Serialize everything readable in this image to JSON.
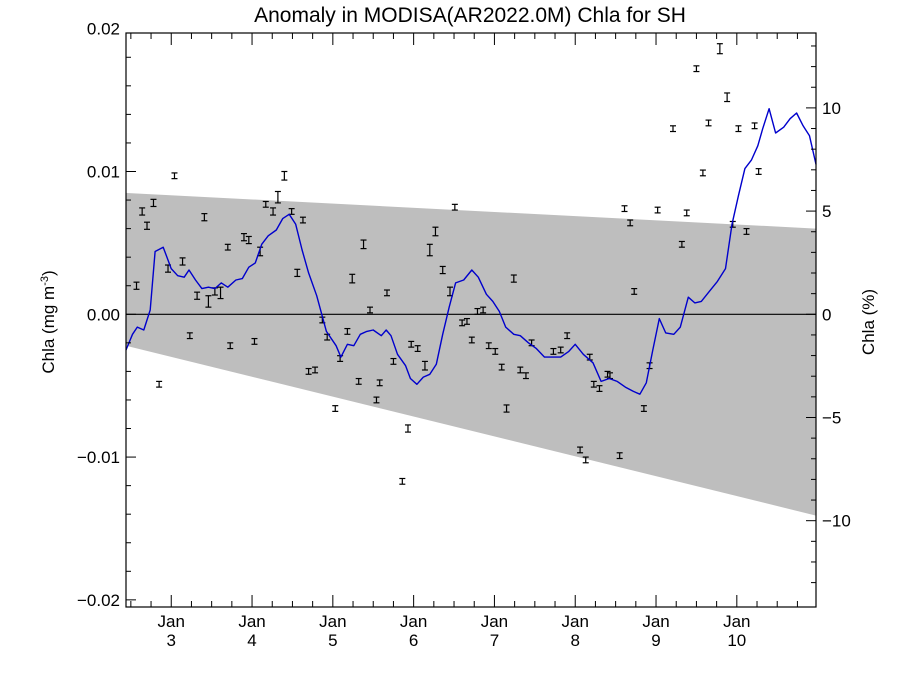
{
  "chart_data": {
    "type": "line",
    "title": "Anomaly in MODISA(AR2022.0M) Chla for SH",
    "ylabel_left": {
      "main": "Chla (mg m",
      "sup": "-3",
      "close": ")"
    },
    "ylabel_right": "Chla (%)",
    "ylim": [
      -0.0205,
      0.0197
    ],
    "xlim": [
      2.44,
      10.98
    ],
    "yticks": [
      {
        "v": 0.02,
        "label": "0.02"
      },
      {
        "v": 0.01,
        "label": "0.01"
      },
      {
        "v": 0.0,
        "label": "0.00"
      },
      {
        "v": -0.01,
        "label": "−0.01"
      },
      {
        "v": -0.02,
        "label": "−0.02"
      }
    ],
    "y2ticks": [
      {
        "v": 10,
        "label": "10"
      },
      {
        "v": 5,
        "label": "5"
      },
      {
        "v": 0,
        "label": "0"
      },
      {
        "v": -5,
        "label": "−5"
      },
      {
        "v": -10,
        "label": "−10"
      }
    ],
    "y2_scale": {
      "zero_at": 0.0,
      "percent_per_unit": 691.8
    },
    "xticks": [
      {
        "v": 3,
        "month": "Jan",
        "year": "3"
      },
      {
        "v": 4,
        "month": "Jan",
        "year": "4"
      },
      {
        "v": 5,
        "month": "Jan",
        "year": "5"
      },
      {
        "v": 6,
        "month": "Jan",
        "year": "6"
      },
      {
        "v": 7,
        "month": "Jan",
        "year": "7"
      },
      {
        "v": 8,
        "month": "Jan",
        "year": "8"
      },
      {
        "v": 9,
        "month": "Jan",
        "year": "9"
      },
      {
        "v": 10,
        "month": "Jan",
        "year": "10"
      }
    ],
    "zero_line": 0.0,
    "band": {
      "upper": [
        [
          2.44,
          0.0085
        ],
        [
          10.98,
          0.006
        ]
      ],
      "lower": [
        [
          2.44,
          -0.0022
        ],
        [
          10.98,
          -0.0141
        ]
      ],
      "color": "#bebebe"
    },
    "series": [
      {
        "kind": "line",
        "color": "#0000cc",
        "points": [
          [
            2.44,
            -0.0025
          ],
          [
            2.52,
            -0.0014
          ],
          [
            2.58,
            -0.0009
          ],
          [
            2.66,
            -0.0011
          ],
          [
            2.74,
            0.0003
          ],
          [
            2.8,
            0.0044
          ],
          [
            2.9,
            0.0047
          ],
          [
            3.0,
            0.0032
          ],
          [
            3.08,
            0.0027
          ],
          [
            3.16,
            0.0026
          ],
          [
            3.22,
            0.0031
          ],
          [
            3.3,
            0.0024
          ],
          [
            3.38,
            0.0018
          ],
          [
            3.46,
            0.0019
          ],
          [
            3.54,
            0.0018
          ],
          [
            3.62,
            0.0022
          ],
          [
            3.7,
            0.0019
          ],
          [
            3.8,
            0.0024
          ],
          [
            3.88,
            0.0025
          ],
          [
            3.96,
            0.0033
          ],
          [
            4.04,
            0.0036
          ],
          [
            4.12,
            0.0049
          ],
          [
            4.2,
            0.0055
          ],
          [
            4.3,
            0.0059
          ],
          [
            4.38,
            0.0067
          ],
          [
            4.46,
            0.007
          ],
          [
            4.54,
            0.0063
          ],
          [
            4.62,
            0.0045
          ],
          [
            4.7,
            0.0029
          ],
          [
            4.8,
            0.0013
          ],
          [
            4.92,
            -0.0012
          ],
          [
            5.04,
            -0.0022
          ],
          [
            5.1,
            -0.003
          ],
          [
            5.18,
            -0.0021
          ],
          [
            5.26,
            -0.0022
          ],
          [
            5.34,
            -0.0014
          ],
          [
            5.42,
            -0.0012
          ],
          [
            5.5,
            -0.0011
          ],
          [
            5.6,
            -0.0015
          ],
          [
            5.66,
            -0.0011
          ],
          [
            5.72,
            -0.0015
          ],
          [
            5.8,
            -0.0028
          ],
          [
            5.9,
            -0.0036
          ],
          [
            5.96,
            -0.0045
          ],
          [
            6.04,
            -0.0049
          ],
          [
            6.12,
            -0.0044
          ],
          [
            6.2,
            -0.0042
          ],
          [
            6.28,
            -0.0035
          ],
          [
            6.36,
            -0.0014
          ],
          [
            6.44,
            0.0005
          ],
          [
            6.52,
            0.0022
          ],
          [
            6.62,
            0.0024
          ],
          [
            6.72,
            0.0031
          ],
          [
            6.8,
            0.0026
          ],
          [
            6.9,
            0.0014
          ],
          [
            6.98,
            0.0009
          ],
          [
            7.06,
            0.0002
          ],
          [
            7.14,
            -0.0009
          ],
          [
            7.24,
            -0.0014
          ],
          [
            7.32,
            -0.0015
          ],
          [
            7.42,
            -0.002
          ],
          [
            7.52,
            -0.0024
          ],
          [
            7.62,
            -0.003
          ],
          [
            7.72,
            -0.003
          ],
          [
            7.82,
            -0.003
          ],
          [
            7.92,
            -0.0026
          ],
          [
            8.0,
            -0.0021
          ],
          [
            8.1,
            -0.0028
          ],
          [
            8.22,
            -0.0034
          ],
          [
            8.32,
            -0.0047
          ],
          [
            8.42,
            -0.0045
          ],
          [
            8.52,
            -0.0047
          ],
          [
            8.62,
            -0.0051
          ],
          [
            8.72,
            -0.0054
          ],
          [
            8.8,
            -0.0056
          ],
          [
            8.88,
            -0.0048
          ],
          [
            8.96,
            -0.0025
          ],
          [
            9.04,
            -0.0003
          ],
          [
            9.12,
            -0.0013
          ],
          [
            9.22,
            -0.0014
          ],
          [
            9.3,
            -0.0009
          ],
          [
            9.4,
            0.0012
          ],
          [
            9.48,
            0.0008
          ],
          [
            9.56,
            0.0009
          ],
          [
            9.66,
            0.0016
          ],
          [
            9.76,
            0.0023
          ],
          [
            9.86,
            0.0032
          ],
          [
            9.94,
            0.0063
          ],
          [
            10.02,
            0.0083
          ],
          [
            10.1,
            0.0102
          ],
          [
            10.18,
            0.0108
          ],
          [
            10.26,
            0.0118
          ],
          [
            10.32,
            0.013
          ],
          [
            10.4,
            0.0144
          ],
          [
            10.48,
            0.0127
          ],
          [
            10.58,
            0.0131
          ],
          [
            10.66,
            0.0137
          ],
          [
            10.74,
            0.0141
          ],
          [
            10.82,
            0.0132
          ],
          [
            10.9,
            0.0125
          ],
          [
            10.98,
            0.0105
          ]
        ]
      },
      {
        "kind": "errorbar",
        "color": "#000000",
        "points": [
          [
            2.57,
            0.002,
            0.00025
          ],
          [
            2.64,
            0.0072,
            0.00025
          ],
          [
            2.7,
            0.0062,
            0.00025
          ],
          [
            2.78,
            0.0078,
            0.00025
          ],
          [
            2.85,
            -0.0049,
            0.0002
          ],
          [
            2.96,
            0.0032,
            0.00025
          ],
          [
            3.04,
            0.0097,
            0.0002
          ],
          [
            3.14,
            0.0037,
            0.00025
          ],
          [
            3.23,
            -0.0015,
            0.0002
          ],
          [
            3.32,
            0.0013,
            0.00025
          ],
          [
            3.41,
            0.0068,
            0.00025
          ],
          [
            3.46,
            0.0009,
            0.0004
          ],
          [
            3.54,
            0.0016,
            0.00025
          ],
          [
            3.61,
            0.0015,
            0.0004
          ],
          [
            3.7,
            0.0047,
            0.0002
          ],
          [
            3.73,
            -0.0022,
            0.0002
          ],
          [
            3.9,
            0.0054,
            0.00025
          ],
          [
            3.96,
            0.0052,
            0.00025
          ],
          [
            4.03,
            -0.0019,
            0.0002
          ],
          [
            4.1,
            0.0044,
            0.0003
          ],
          [
            4.17,
            0.0077,
            0.0002
          ],
          [
            4.26,
            0.0072,
            0.00025
          ],
          [
            4.32,
            0.0082,
            0.0004
          ],
          [
            4.4,
            0.0097,
            0.0003
          ],
          [
            4.49,
            0.0072,
            0.0002
          ],
          [
            4.56,
            0.0029,
            0.00025
          ],
          [
            4.63,
            0.0066,
            0.0002
          ],
          [
            4.7,
            -0.004,
            0.0002
          ],
          [
            4.78,
            -0.0039,
            0.0002
          ],
          [
            4.87,
            -0.0004,
            0.0002
          ],
          [
            4.93,
            -0.0016,
            0.0002
          ],
          [
            5.03,
            -0.0066,
            0.0002
          ],
          [
            5.09,
            -0.0031,
            0.0002
          ],
          [
            5.18,
            -0.0012,
            0.0002
          ],
          [
            5.24,
            0.0025,
            0.0003
          ],
          [
            5.32,
            -0.0047,
            0.0002
          ],
          [
            5.38,
            0.0049,
            0.0003
          ],
          [
            5.46,
            0.0003,
            0.0002
          ],
          [
            5.54,
            -0.006,
            0.0002
          ],
          [
            5.58,
            -0.0048,
            0.0002
          ],
          [
            5.67,
            0.0015,
            0.0002
          ],
          [
            5.75,
            -0.0033,
            0.0002
          ],
          [
            5.86,
            -0.0117,
            0.0002
          ],
          [
            5.93,
            -0.008,
            0.00025
          ],
          [
            5.97,
            -0.0021,
            0.0002
          ],
          [
            6.05,
            -0.0024,
            0.0002
          ],
          [
            6.14,
            -0.0036,
            0.0003
          ],
          [
            6.2,
            0.0045,
            0.0004
          ],
          [
            6.27,
            0.0058,
            0.0003
          ],
          [
            6.36,
            0.0031,
            0.00025
          ],
          [
            6.45,
            0.0016,
            0.0003
          ],
          [
            6.51,
            0.0075,
            0.0002
          ],
          [
            6.6,
            -0.0006,
            0.0002
          ],
          [
            6.66,
            -0.0005,
            0.0002
          ],
          [
            6.72,
            -0.0018,
            0.0002
          ],
          [
            6.79,
            0.0002,
            0.0002
          ],
          [
            6.86,
            0.0003,
            0.0002
          ],
          [
            6.93,
            -0.0022,
            0.0002
          ],
          [
            7.01,
            -0.0026,
            0.0002
          ],
          [
            7.09,
            -0.0037,
            0.0002
          ],
          [
            7.15,
            -0.0066,
            0.00025
          ],
          [
            7.24,
            0.0025,
            0.00025
          ],
          [
            7.32,
            -0.0039,
            0.0002
          ],
          [
            7.39,
            -0.0043,
            0.0002
          ],
          [
            7.46,
            -0.002,
            0.0002
          ],
          [
            7.73,
            -0.0026,
            0.0002
          ],
          [
            7.82,
            -0.0025,
            0.0002
          ],
          [
            7.9,
            -0.0015,
            0.0002
          ],
          [
            8.06,
            -0.0095,
            0.0002
          ],
          [
            8.13,
            -0.0102,
            0.0002
          ],
          [
            8.18,
            -0.003,
            0.0002
          ],
          [
            8.23,
            -0.0049,
            0.0002
          ],
          [
            8.3,
            -0.0052,
            0.0002
          ],
          [
            8.4,
            -0.0042,
            0.0002
          ],
          [
            8.43,
            -0.0043,
            0.0002
          ],
          [
            8.55,
            -0.0099,
            0.0002
          ],
          [
            8.61,
            0.0074,
            0.0002
          ],
          [
            8.68,
            0.0064,
            0.0002
          ],
          [
            8.73,
            0.0016,
            0.0002
          ],
          [
            8.85,
            -0.0066,
            0.0002
          ],
          [
            8.92,
            -0.0036,
            0.0002
          ],
          [
            9.02,
            0.0073,
            0.0002
          ],
          [
            9.21,
            0.013,
            0.0002
          ],
          [
            9.32,
            0.0049,
            0.0002
          ],
          [
            9.38,
            0.0071,
            0.0002
          ],
          [
            9.5,
            0.0172,
            0.0002
          ],
          [
            9.58,
            0.0099,
            0.0002
          ],
          [
            9.65,
            0.0134,
            0.0002
          ],
          [
            9.79,
            0.0186,
            0.00035
          ],
          [
            9.88,
            0.0152,
            0.0003
          ],
          [
            9.95,
            0.0063,
            0.0002
          ],
          [
            10.02,
            0.013,
            0.0002
          ],
          [
            10.12,
            0.0058,
            0.0002
          ],
          [
            10.22,
            0.0132,
            0.0002
          ],
          [
            10.27,
            0.01,
            0.0002
          ]
        ]
      }
    ]
  }
}
